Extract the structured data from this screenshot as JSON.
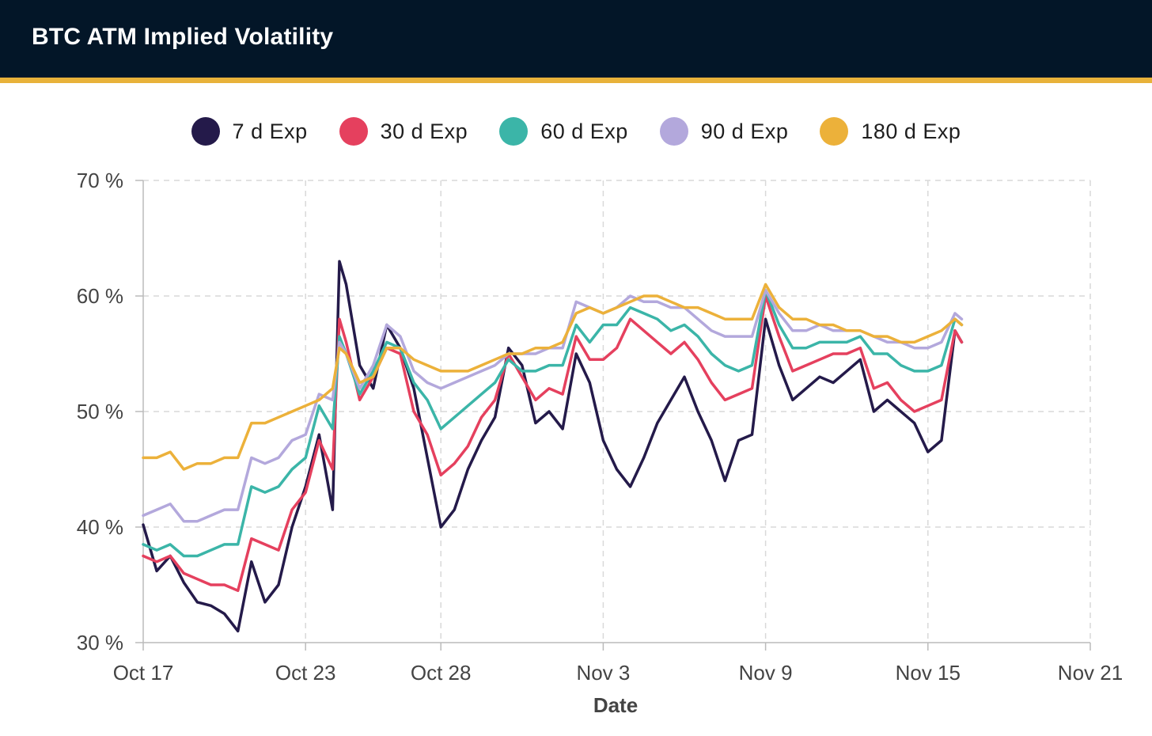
{
  "header": {
    "title": "BTC ATM Implied Volatility"
  },
  "colors": {
    "header_bg": "#031628",
    "accent_rule": "#e8b23a",
    "grid": "#d9d9d9",
    "axis_text": "#444444"
  },
  "chart_data": {
    "type": "line",
    "title": "BTC ATM Implied Volatility",
    "xlabel": "Date",
    "ylabel": "",
    "ylim": [
      30,
      70
    ],
    "xlim": [
      "2023-10-17",
      "2023-11-21"
    ],
    "x_ticks": [
      "Oct 17",
      "Oct 23",
      "Oct 28",
      "Nov 3",
      "Nov 9",
      "Nov 15",
      "Nov 21"
    ],
    "y_ticks": [
      "30 %",
      "40 %",
      "50 %",
      "60 %",
      "70 %"
    ],
    "grid": true,
    "legend_position": "top-center",
    "series": [
      {
        "name": "7 d Exp",
        "color": "#241a4a",
        "x": [
          "2023-10-17 00:00",
          "2023-10-17 12:00",
          "2023-10-18 00:00",
          "2023-10-18 12:00",
          "2023-10-19 00:00",
          "2023-10-19 12:00",
          "2023-10-20 00:00",
          "2023-10-20 12:00",
          "2023-10-21 00:00",
          "2023-10-21 12:00",
          "2023-10-22 00:00",
          "2023-10-22 12:00",
          "2023-10-23 00:00",
          "2023-10-23 12:00",
          "2023-10-24 00:00",
          "2023-10-24 06:00",
          "2023-10-24 12:00",
          "2023-10-25 00:00",
          "2023-10-25 12:00",
          "2023-10-26 00:00",
          "2023-10-26 12:00",
          "2023-10-27 00:00",
          "2023-10-27 12:00",
          "2023-10-28 00:00",
          "2023-10-28 12:00",
          "2023-10-29 00:00",
          "2023-10-29 12:00",
          "2023-10-30 00:00",
          "2023-10-30 12:00",
          "2023-10-31 00:00",
          "2023-10-31 12:00",
          "2023-11-01 00:00",
          "2023-11-01 12:00",
          "2023-11-02 00:00",
          "2023-11-02 12:00",
          "2023-11-03 00:00",
          "2023-11-03 12:00",
          "2023-11-04 00:00",
          "2023-11-04 12:00",
          "2023-11-05 00:00",
          "2023-11-05 12:00",
          "2023-11-06 00:00",
          "2023-11-06 12:00",
          "2023-11-07 00:00",
          "2023-11-07 12:00",
          "2023-11-08 00:00",
          "2023-11-08 12:00",
          "2023-11-09 00:00",
          "2023-11-09 12:00",
          "2023-11-10 00:00",
          "2023-11-10 12:00",
          "2023-11-11 00:00",
          "2023-11-11 12:00",
          "2023-11-12 00:00",
          "2023-11-12 12:00",
          "2023-11-13 00:00",
          "2023-11-13 12:00",
          "2023-11-14 00:00",
          "2023-11-14 12:00",
          "2023-11-15 00:00",
          "2023-11-15 12:00",
          "2023-11-16 00:00",
          "2023-11-16 06:00"
        ],
        "values": [
          40.2,
          36.2,
          37.5,
          35.2,
          33.5,
          33.2,
          32.5,
          31.0,
          37.0,
          33.5,
          35.0,
          40.0,
          43.5,
          48.0,
          41.5,
          63.0,
          61.0,
          54.0,
          52.0,
          57.5,
          55.5,
          52.0,
          46.0,
          40.0,
          41.5,
          45.0,
          47.5,
          49.5,
          55.5,
          54.0,
          49.0,
          50.0,
          48.5,
          55.0,
          52.5,
          47.5,
          45.0,
          43.5,
          46.0,
          49.0,
          51.0,
          53.0,
          50.0,
          47.5,
          44.0,
          47.5,
          48.0,
          58.0,
          54.0,
          51.0,
          52.0,
          53.0,
          52.5,
          53.5,
          54.5,
          50.0,
          51.0,
          50.0,
          49.0,
          46.5,
          47.5,
          57.0,
          56.0
        ]
      },
      {
        "name": "30 d Exp",
        "color": "#e5405e",
        "x": [
          "2023-10-17 00:00",
          "2023-10-17 12:00",
          "2023-10-18 00:00",
          "2023-10-18 12:00",
          "2023-10-19 00:00",
          "2023-10-19 12:00",
          "2023-10-20 00:00",
          "2023-10-20 12:00",
          "2023-10-21 00:00",
          "2023-10-21 12:00",
          "2023-10-22 00:00",
          "2023-10-22 12:00",
          "2023-10-23 00:00",
          "2023-10-23 12:00",
          "2023-10-24 00:00",
          "2023-10-24 06:00",
          "2023-10-24 12:00",
          "2023-10-25 00:00",
          "2023-10-25 12:00",
          "2023-10-26 00:00",
          "2023-10-26 12:00",
          "2023-10-27 00:00",
          "2023-10-27 12:00",
          "2023-10-28 00:00",
          "2023-10-28 12:00",
          "2023-10-29 00:00",
          "2023-10-29 12:00",
          "2023-10-30 00:00",
          "2023-10-30 12:00",
          "2023-10-31 00:00",
          "2023-10-31 12:00",
          "2023-11-01 00:00",
          "2023-11-01 12:00",
          "2023-11-02 00:00",
          "2023-11-02 12:00",
          "2023-11-03 00:00",
          "2023-11-03 12:00",
          "2023-11-04 00:00",
          "2023-11-04 12:00",
          "2023-11-05 00:00",
          "2023-11-05 12:00",
          "2023-11-06 00:00",
          "2023-11-06 12:00",
          "2023-11-07 00:00",
          "2023-11-07 12:00",
          "2023-11-08 00:00",
          "2023-11-08 12:00",
          "2023-11-09 00:00",
          "2023-11-09 12:00",
          "2023-11-10 00:00",
          "2023-11-10 12:00",
          "2023-11-11 00:00",
          "2023-11-11 12:00",
          "2023-11-12 00:00",
          "2023-11-12 12:00",
          "2023-11-13 00:00",
          "2023-11-13 12:00",
          "2023-11-14 00:00",
          "2023-11-14 12:00",
          "2023-11-15 00:00",
          "2023-11-15 12:00",
          "2023-11-16 00:00",
          "2023-11-16 06:00"
        ],
        "values": [
          37.5,
          37.0,
          37.5,
          36.0,
          35.5,
          35.0,
          35.0,
          34.5,
          39.0,
          38.5,
          38.0,
          41.5,
          43.0,
          47.5,
          45.0,
          58.0,
          56.0,
          51.0,
          53.0,
          55.5,
          55.0,
          50.0,
          48.0,
          44.5,
          45.5,
          47.0,
          49.5,
          51.0,
          55.0,
          53.0,
          51.0,
          52.0,
          51.5,
          56.5,
          54.5,
          54.5,
          55.5,
          58.0,
          57.0,
          56.0,
          55.0,
          56.0,
          54.5,
          52.5,
          51.0,
          51.5,
          52.0,
          60.0,
          56.5,
          53.5,
          54.0,
          54.5,
          55.0,
          55.0,
          55.5,
          52.0,
          52.5,
          51.0,
          50.0,
          50.5,
          51.0,
          57.0,
          56.0
        ]
      },
      {
        "name": "60 d Exp",
        "color": "#3bb5a8",
        "x": [
          "2023-10-17 00:00",
          "2023-10-17 12:00",
          "2023-10-18 00:00",
          "2023-10-18 12:00",
          "2023-10-19 00:00",
          "2023-10-19 12:00",
          "2023-10-20 00:00",
          "2023-10-20 12:00",
          "2023-10-21 00:00",
          "2023-10-21 12:00",
          "2023-10-22 00:00",
          "2023-10-22 12:00",
          "2023-10-23 00:00",
          "2023-10-23 12:00",
          "2023-10-24 00:00",
          "2023-10-24 06:00",
          "2023-10-24 12:00",
          "2023-10-25 00:00",
          "2023-10-25 12:00",
          "2023-10-26 00:00",
          "2023-10-26 12:00",
          "2023-10-27 00:00",
          "2023-10-27 12:00",
          "2023-10-28 00:00",
          "2023-10-28 12:00",
          "2023-10-29 00:00",
          "2023-10-29 12:00",
          "2023-10-30 00:00",
          "2023-10-30 12:00",
          "2023-10-31 00:00",
          "2023-10-31 12:00",
          "2023-11-01 00:00",
          "2023-11-01 12:00",
          "2023-11-02 00:00",
          "2023-11-02 12:00",
          "2023-11-03 00:00",
          "2023-11-03 12:00",
          "2023-11-04 00:00",
          "2023-11-04 12:00",
          "2023-11-05 00:00",
          "2023-11-05 12:00",
          "2023-11-06 00:00",
          "2023-11-06 12:00",
          "2023-11-07 00:00",
          "2023-11-07 12:00",
          "2023-11-08 00:00",
          "2023-11-08 12:00",
          "2023-11-09 00:00",
          "2023-11-09 12:00",
          "2023-11-10 00:00",
          "2023-11-10 12:00",
          "2023-11-11 00:00",
          "2023-11-11 12:00",
          "2023-11-12 00:00",
          "2023-11-12 12:00",
          "2023-11-13 00:00",
          "2023-11-13 12:00",
          "2023-11-14 00:00",
          "2023-11-14 12:00",
          "2023-11-15 00:00",
          "2023-11-15 12:00",
          "2023-11-16 00:00",
          "2023-11-16 06:00"
        ],
        "values": [
          38.5,
          38.0,
          38.5,
          37.5,
          37.5,
          38.0,
          38.5,
          38.5,
          43.5,
          43.0,
          43.5,
          45.0,
          46.0,
          50.5,
          48.5,
          56.5,
          55.0,
          51.5,
          53.5,
          56.0,
          55.5,
          52.5,
          51.0,
          48.5,
          49.5,
          50.5,
          51.5,
          52.5,
          54.5,
          53.5,
          53.5,
          54.0,
          54.0,
          57.5,
          56.0,
          57.5,
          57.5,
          59.0,
          58.5,
          58.0,
          57.0,
          57.5,
          56.5,
          55.0,
          54.0,
          53.5,
          54.0,
          60.5,
          57.5,
          55.5,
          55.5,
          56.0,
          56.0,
          56.0,
          56.5,
          55.0,
          55.0,
          54.0,
          53.5,
          53.5,
          54.0,
          58.0,
          57.5
        ]
      },
      {
        "name": "90 d Exp",
        "color": "#b3a8dc",
        "x": [
          "2023-10-17 00:00",
          "2023-10-17 12:00",
          "2023-10-18 00:00",
          "2023-10-18 12:00",
          "2023-10-19 00:00",
          "2023-10-19 12:00",
          "2023-10-20 00:00",
          "2023-10-20 12:00",
          "2023-10-21 00:00",
          "2023-10-21 12:00",
          "2023-10-22 00:00",
          "2023-10-22 12:00",
          "2023-10-23 00:00",
          "2023-10-23 12:00",
          "2023-10-24 00:00",
          "2023-10-24 06:00",
          "2023-10-24 12:00",
          "2023-10-25 00:00",
          "2023-10-25 12:00",
          "2023-10-26 00:00",
          "2023-10-26 12:00",
          "2023-10-27 00:00",
          "2023-10-27 12:00",
          "2023-10-28 00:00",
          "2023-10-28 12:00",
          "2023-10-29 00:00",
          "2023-10-29 12:00",
          "2023-10-30 00:00",
          "2023-10-30 12:00",
          "2023-10-31 00:00",
          "2023-10-31 12:00",
          "2023-11-01 00:00",
          "2023-11-01 12:00",
          "2023-11-02 00:00",
          "2023-11-02 12:00",
          "2023-11-03 00:00",
          "2023-11-03 12:00",
          "2023-11-04 00:00",
          "2023-11-04 12:00",
          "2023-11-05 00:00",
          "2023-11-05 12:00",
          "2023-11-06 00:00",
          "2023-11-06 12:00",
          "2023-11-07 00:00",
          "2023-11-07 12:00",
          "2023-11-08 00:00",
          "2023-11-08 12:00",
          "2023-11-09 00:00",
          "2023-11-09 12:00",
          "2023-11-10 00:00",
          "2023-11-10 12:00",
          "2023-11-11 00:00",
          "2023-11-11 12:00",
          "2023-11-12 00:00",
          "2023-11-12 12:00",
          "2023-11-13 00:00",
          "2023-11-13 12:00",
          "2023-11-14 00:00",
          "2023-11-14 12:00",
          "2023-11-15 00:00",
          "2023-11-15 12:00",
          "2023-11-16 00:00",
          "2023-11-16 06:00"
        ],
        "values": [
          41.0,
          41.5,
          42.0,
          40.5,
          40.5,
          41.0,
          41.5,
          41.5,
          46.0,
          45.5,
          46.0,
          47.5,
          48.0,
          51.5,
          51.0,
          56.0,
          55.0,
          52.0,
          54.0,
          57.5,
          56.5,
          53.5,
          52.5,
          52.0,
          52.5,
          53.0,
          53.5,
          54.0,
          55.0,
          55.0,
          55.0,
          55.5,
          55.5,
          59.5,
          59.0,
          58.5,
          59.0,
          60.0,
          59.5,
          59.5,
          59.0,
          59.0,
          58.0,
          57.0,
          56.5,
          56.5,
          56.5,
          60.5,
          58.5,
          57.0,
          57.0,
          57.5,
          57.0,
          57.0,
          57.0,
          56.5,
          56.0,
          56.0,
          55.5,
          55.5,
          56.0,
          58.5,
          58.0
        ]
      },
      {
        "name": "180 d Exp",
        "color": "#ecb13a",
        "x": [
          "2023-10-17 00:00",
          "2023-10-17 12:00",
          "2023-10-18 00:00",
          "2023-10-18 12:00",
          "2023-10-19 00:00",
          "2023-10-19 12:00",
          "2023-10-20 00:00",
          "2023-10-20 12:00",
          "2023-10-21 00:00",
          "2023-10-21 12:00",
          "2023-10-22 00:00",
          "2023-10-22 12:00",
          "2023-10-23 00:00",
          "2023-10-23 12:00",
          "2023-10-24 00:00",
          "2023-10-24 06:00",
          "2023-10-24 12:00",
          "2023-10-25 00:00",
          "2023-10-25 12:00",
          "2023-10-26 00:00",
          "2023-10-26 12:00",
          "2023-10-27 00:00",
          "2023-10-27 12:00",
          "2023-10-28 00:00",
          "2023-10-28 12:00",
          "2023-10-29 00:00",
          "2023-10-29 12:00",
          "2023-10-30 00:00",
          "2023-10-30 12:00",
          "2023-10-31 00:00",
          "2023-10-31 12:00",
          "2023-11-01 00:00",
          "2023-11-01 12:00",
          "2023-11-02 00:00",
          "2023-11-02 12:00",
          "2023-11-03 00:00",
          "2023-11-03 12:00",
          "2023-11-04 00:00",
          "2023-11-04 12:00",
          "2023-11-05 00:00",
          "2023-11-05 12:00",
          "2023-11-06 00:00",
          "2023-11-06 12:00",
          "2023-11-07 00:00",
          "2023-11-07 12:00",
          "2023-11-08 00:00",
          "2023-11-08 12:00",
          "2023-11-09 00:00",
          "2023-11-09 12:00",
          "2023-11-10 00:00",
          "2023-11-10 12:00",
          "2023-11-11 00:00",
          "2023-11-11 12:00",
          "2023-11-12 00:00",
          "2023-11-12 12:00",
          "2023-11-13 00:00",
          "2023-11-13 12:00",
          "2023-11-14 00:00",
          "2023-11-14 12:00",
          "2023-11-15 00:00",
          "2023-11-15 12:00",
          "2023-11-16 00:00",
          "2023-11-16 06:00"
        ],
        "values": [
          46.0,
          46.0,
          46.5,
          45.0,
          45.5,
          45.5,
          46.0,
          46.0,
          49.0,
          49.0,
          49.5,
          50.0,
          50.5,
          51.0,
          52.0,
          55.5,
          55.0,
          52.5,
          53.0,
          55.5,
          55.5,
          54.5,
          54.0,
          53.5,
          53.5,
          53.5,
          54.0,
          54.5,
          55.0,
          55.0,
          55.5,
          55.5,
          56.0,
          58.5,
          59.0,
          58.5,
          59.0,
          59.5,
          60.0,
          60.0,
          59.5,
          59.0,
          59.0,
          58.5,
          58.0,
          58.0,
          58.0,
          61.0,
          59.0,
          58.0,
          58.0,
          57.5,
          57.5,
          57.0,
          57.0,
          56.5,
          56.5,
          56.0,
          56.0,
          56.5,
          57.0,
          58.0,
          57.5
        ]
      }
    ]
  }
}
